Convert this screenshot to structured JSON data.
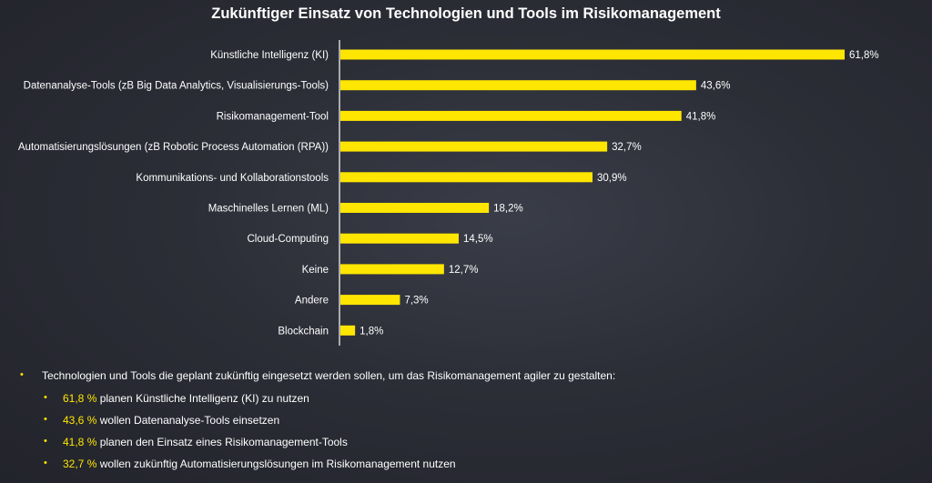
{
  "chart_data": {
    "type": "bar",
    "orientation": "horizontal",
    "title": "Zukünftiger Einsatz von Technologien und Tools im Risikomanagement",
    "categories": [
      "Künstliche Intelligenz (KI)",
      "Datenanalyse-Tools (zB Big Data Analytics, Visualisierungs-Tools)",
      "Risikomanagement-Tool",
      "Automatisierungslösungen (zB Robotic Process Automation (RPA))",
      "Kommunikations- und Kollaborationstools",
      "Maschinelles Lernen (ML)",
      "Cloud-Computing",
      "Keine",
      "Andere",
      "Blockchain"
    ],
    "values": [
      61.8,
      43.6,
      41.8,
      32.7,
      30.9,
      18.2,
      14.5,
      12.7,
      7.3,
      1.8
    ],
    "value_labels": [
      "61,8%",
      "43,6%",
      "41,8%",
      "32,7%",
      "30,9%",
      "18,2%",
      "14,5%",
      "12,7%",
      "7,3%",
      "1,8%"
    ],
    "xlim": [
      0,
      65
    ],
    "bar_color": "#ffe600",
    "xlabel": "",
    "ylabel": ""
  },
  "notes": {
    "intro": "Technologien und Tools die geplant zukünftig eingesetzt werden sollen, um das Risikomanagement agiler zu gestalten:",
    "items": [
      {
        "pct": "61,8 %",
        "text": " planen Künstliche Intelligenz (KI) zu nutzen"
      },
      {
        "pct": "43,6 %",
        "text": " wollen Datenanalyse-Tools einsetzen"
      },
      {
        "pct": "41,8 %",
        "text": " planen den Einsatz eines Risikomanagement-Tools"
      },
      {
        "pct": "32,7 %",
        "text": " wollen zukünftig Automatisierungslösungen im Risikomanagement nutzen"
      }
    ]
  },
  "colors": {
    "accent": "#ffe600",
    "text": "#ffffff",
    "axis": "#ffffff"
  }
}
